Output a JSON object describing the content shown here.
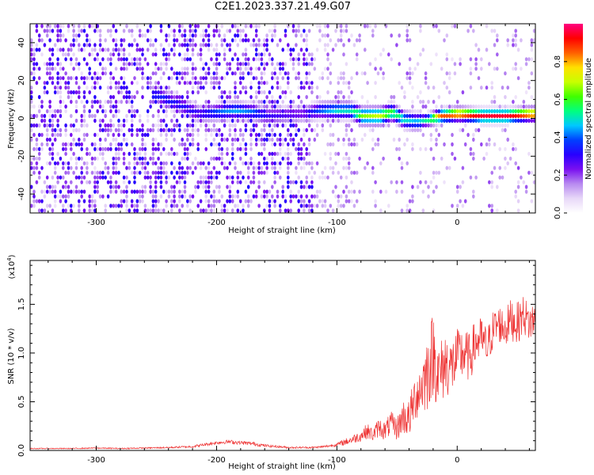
{
  "page": {
    "title": "C2E1.2023.337.21.49.G07"
  },
  "chart_data": [
    {
      "type": "heatmap",
      "title": "",
      "xlabel": "Height of straight line (km)",
      "ylabel": "Frequency (Hz)",
      "xlim": [
        -355,
        65
      ],
      "ylim": [
        -50,
        50
      ],
      "x_ticks": [
        -300,
        -200,
        -100,
        0
      ],
      "y_ticks": [
        -40,
        -20,
        0,
        20,
        40
      ],
      "x_tick_labels": [
        "-300",
        "-200",
        "-100",
        "0"
      ],
      "y_tick_labels": [
        "-40",
        "-20",
        "0",
        "20",
        "40"
      ],
      "colorbar": {
        "label": "Normalized spectral amplitude",
        "range": [
          0,
          1
        ],
        "ticks": [
          0.0,
          0.2,
          0.4,
          0.6,
          0.8
        ],
        "tick_labels": [
          "0.0",
          "0.2",
          "0.4",
          "0.6",
          "0.8"
        ],
        "colormap": [
          "#ffffff",
          "#e8d8f8",
          "#b88af0",
          "#7a10f0",
          "#2800ff",
          "#0040ff",
          "#00c8ff",
          "#00ff80",
          "#40ff00",
          "#c8ff00",
          "#ffe000",
          "#ff6000",
          "#ff0000",
          "#ff0080"
        ]
      },
      "ridge": [
        {
          "x": -250,
          "y": 11,
          "amp": 0.35
        },
        {
          "x": -215,
          "y": 1,
          "amp": 0.3
        },
        {
          "x": -200,
          "y": 2,
          "amp": 0.4
        },
        {
          "x": -185,
          "y": 3,
          "amp": 0.45
        },
        {
          "x": -170,
          "y": 2,
          "amp": 0.4
        },
        {
          "x": -160,
          "y": 0,
          "amp": 0.3
        },
        {
          "x": -130,
          "y": 1,
          "amp": 0.25
        },
        {
          "x": -115,
          "y": 3,
          "amp": 0.4
        },
        {
          "x": -100,
          "y": 3,
          "amp": 0.5
        },
        {
          "x": -90,
          "y": 3,
          "amp": 0.5
        },
        {
          "x": -80,
          "y": 0,
          "amp": 0.65
        },
        {
          "x": -65,
          "y": 0,
          "amp": 0.7
        },
        {
          "x": -55,
          "y": 2,
          "amp": 0.6
        },
        {
          "x": -45,
          "y": -2,
          "amp": 0.5
        },
        {
          "x": -35,
          "y": -3,
          "amp": 0.45
        },
        {
          "x": -25,
          "y": -2,
          "amp": 0.55
        },
        {
          "x": -15,
          "y": 0,
          "amp": 0.85
        },
        {
          "x": 0,
          "y": 1,
          "amp": 0.9
        },
        {
          "x": 20,
          "y": 0,
          "amp": 0.95
        },
        {
          "x": 40,
          "y": 0,
          "amp": 0.95
        },
        {
          "x": 60,
          "y": 1,
          "amp": 0.9
        }
      ]
    },
    {
      "type": "line",
      "title": "",
      "xlabel": "Height of straight line (km)",
      "ylabel": "SNR (10 * v/v)",
      "y_scale_label": "(x10",
      "y_scale_exponent": "4",
      "y_scale_suffix": ")",
      "xlim": [
        -355,
        65
      ],
      "ylim": [
        0,
        1.95
      ],
      "x_ticks": [
        -300,
        -200,
        -100,
        0
      ],
      "y_ticks": [
        0.0,
        0.5,
        1.0,
        1.5
      ],
      "x_tick_labels": [
        "-300",
        "-200",
        "-100",
        "0"
      ],
      "y_tick_labels": [
        "0.0",
        "0.5",
        "1.0",
        "1.5"
      ],
      "series": [
        {
          "color": "#ee3333",
          "x": [
            -355,
            -340,
            -320,
            -300,
            -280,
            -260,
            -240,
            -220,
            -210,
            -200,
            -190,
            -180,
            -170,
            -160,
            -150,
            -140,
            -130,
            -120,
            -110,
            -100,
            -90,
            -80,
            -75,
            -70,
            -65,
            -60,
            -55,
            -50,
            -45,
            -40,
            -35,
            -30,
            -25,
            -20,
            -15,
            -10,
            -5,
            0,
            5,
            10,
            15,
            20,
            25,
            30,
            35,
            40,
            45,
            50,
            55,
            60,
            65
          ],
          "y": [
            0.02,
            0.02,
            0.02,
            0.025,
            0.02,
            0.025,
            0.03,
            0.04,
            0.06,
            0.08,
            0.09,
            0.08,
            0.07,
            0.05,
            0.04,
            0.03,
            0.03,
            0.03,
            0.04,
            0.06,
            0.1,
            0.15,
            0.2,
            0.16,
            0.24,
            0.2,
            0.28,
            0.22,
            0.35,
            0.32,
            0.55,
            0.65,
            0.8,
            1.0,
            0.75,
            0.9,
            0.85,
            0.95,
            1.0,
            0.95,
            1.1,
            1.15,
            1.05,
            1.25,
            1.3,
            1.25,
            1.35,
            1.3,
            1.4,
            1.3,
            1.35
          ],
          "noise": [
            0.005,
            0.005,
            0.005,
            0.006,
            0.006,
            0.007,
            0.008,
            0.012,
            0.015,
            0.018,
            0.02,
            0.02,
            0.02,
            0.015,
            0.012,
            0.01,
            0.01,
            0.01,
            0.012,
            0.02,
            0.04,
            0.06,
            0.08,
            0.07,
            0.1,
            0.1,
            0.12,
            0.12,
            0.18,
            0.2,
            0.25,
            0.3,
            0.4,
            0.45,
            0.35,
            0.35,
            0.3,
            0.3,
            0.28,
            0.25,
            0.25,
            0.22,
            0.22,
            0.2,
            0.2,
            0.2,
            0.22,
            0.22,
            0.2,
            0.2,
            0.2
          ]
        }
      ]
    }
  ]
}
